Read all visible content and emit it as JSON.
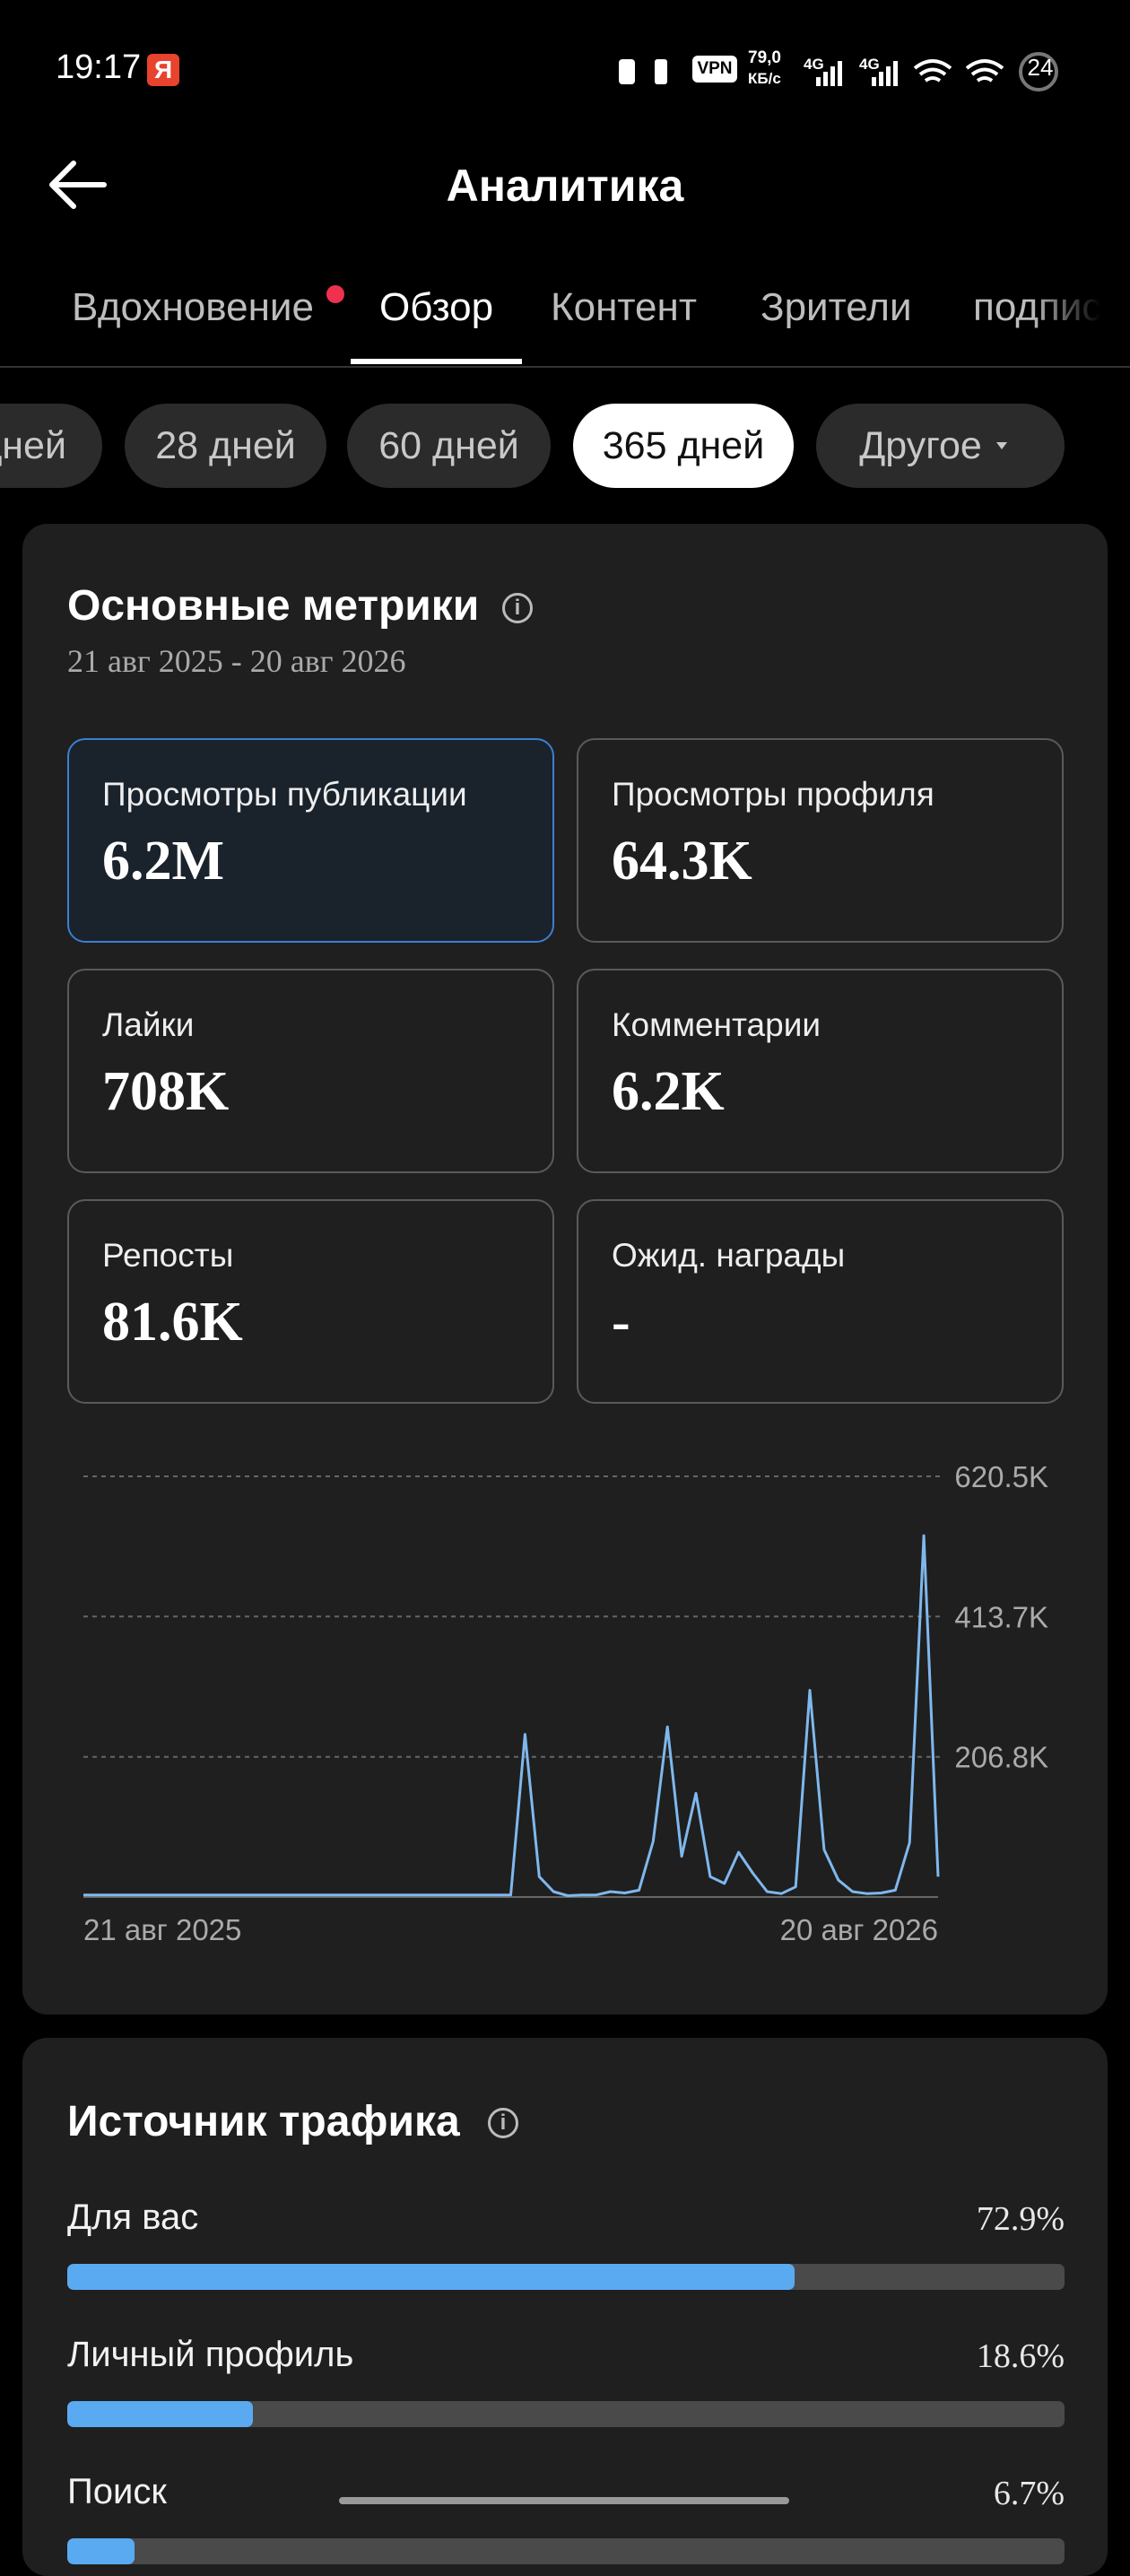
{
  "status_bar": {
    "time": "19:17",
    "badge": "Я",
    "vpn": "VPN",
    "speed": "79,0",
    "speed_unit": "КБ/с",
    "network": [
      "4G",
      "4G"
    ],
    "battery": "24"
  },
  "header": {
    "title": "Аналитика"
  },
  "tabs": [
    "Вдохновение",
    "Обзор",
    "Контент",
    "Зрители",
    "подписчики"
  ],
  "periods": [
    "дней",
    "28 дней",
    "60 дней",
    "365 дней",
    "Другое"
  ],
  "metrics_card": {
    "title": "Основные метрики",
    "date_range": "21 авг 2025 - 20 авг 2026",
    "metrics": [
      {
        "label": "Просмотры публикации",
        "value": "6.2M"
      },
      {
        "label": "Просмотры профиля",
        "value": "64.3K"
      },
      {
        "label": "Лайки",
        "value": "708K"
      },
      {
        "label": "Комментарии",
        "value": "6.2K"
      },
      {
        "label": "Репосты",
        "value": "81.6K"
      },
      {
        "label": "Ожид. награды",
        "value": "-"
      }
    ],
    "chart": {
      "type": "line",
      "color": "#7fb8ee",
      "grid": true,
      "categories": [
        "21 авг 2025",
        null,
        null,
        null,
        null,
        null,
        null,
        null,
        null,
        null,
        null,
        null,
        null,
        null,
        null,
        null,
        null,
        null,
        null,
        null,
        null,
        null,
        null,
        null,
        null,
        null,
        null,
        null,
        null,
        null,
        null,
        null,
        null,
        null,
        null,
        null,
        null,
        null,
        null,
        null,
        null,
        null,
        null,
        null,
        null,
        null,
        null,
        null,
        null,
        null,
        null,
        null,
        null,
        null,
        null,
        null,
        null,
        null,
        null,
        null,
        "20 авг 2026"
      ],
      "values": [
        3000,
        3000,
        3000,
        3000,
        3000,
        3000,
        3000,
        3000,
        3000,
        3000,
        3000,
        3000,
        3000,
        3000,
        3000,
        3000,
        3000,
        3000,
        3000,
        3000,
        3000,
        3000,
        3000,
        3000,
        3000,
        3000,
        3000,
        3000,
        3000,
        3000,
        3000,
        240000,
        30000,
        8000,
        2000,
        3000,
        3000,
        8000,
        6000,
        10000,
        82000,
        251000,
        60000,
        153000,
        30000,
        20000,
        66000,
        35000,
        8000,
        5000,
        15000,
        305000,
        70000,
        25000,
        8000,
        5000,
        6000,
        10000,
        80000,
        533000,
        30000
      ],
      "ylim": [
        0,
        620500
      ],
      "yticks": [
        {
          "value": 206800,
          "label": "206.8K"
        },
        {
          "value": 413700,
          "label": "413.7K"
        },
        {
          "value": 620500,
          "label": "620.5K"
        }
      ]
    }
  },
  "traffic_card": {
    "title": "Источник трафика",
    "xlim": [
      0,
      100
    ],
    "sources": [
      "Для вас",
      "Личный профиль",
      "Поиск"
    ],
    "values": [
      72.9,
      18.6,
      6.7
    ],
    "value_labels": [
      "72.9%",
      "18.6%",
      "6.7%"
    ]
  }
}
